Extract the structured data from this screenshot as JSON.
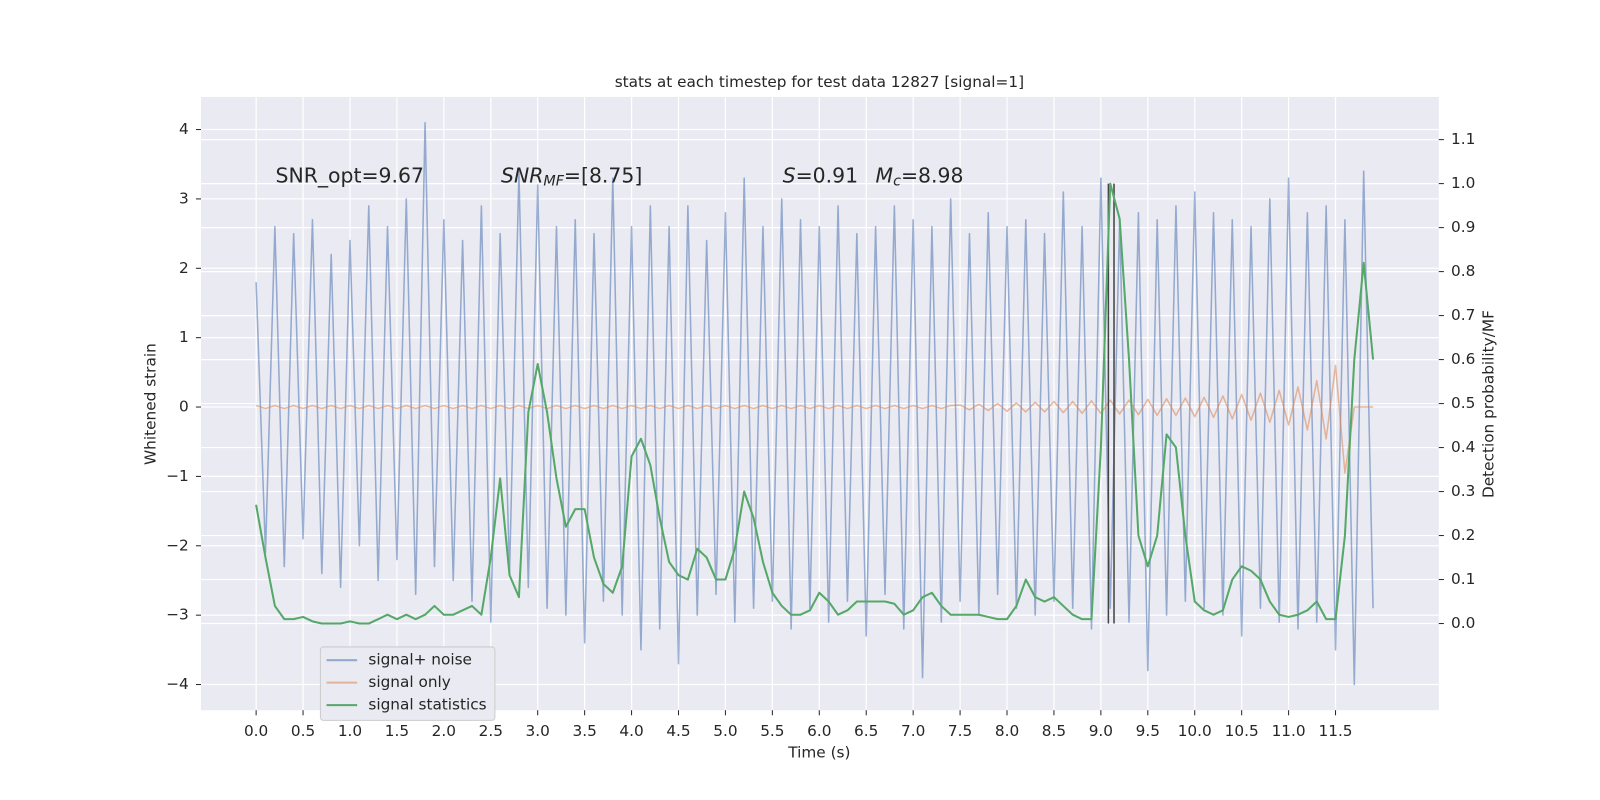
{
  "chart_data": {
    "type": "line",
    "title": "stats at each timestep for test data 12827 [signal=1]",
    "x_label": "Time (s)",
    "y_label": "Whitened strain",
    "y2_label": "Detection probability/MF",
    "grid": true,
    "legend": "lower left",
    "annotations": [
      {
        "parts": [
          {
            "text": "SNR_opt=9.67"
          }
        ]
      },
      {
        "parts": [
          {
            "text": "SNR",
            "italic": true
          },
          {
            "text": "MF",
            "italic": true,
            "sub": true
          },
          {
            "text": "=[8.75]"
          }
        ]
      },
      {
        "parts": [
          {
            "text": "S",
            "italic": true
          },
          {
            "text": "=0.91"
          }
        ]
      },
      {
        "parts": [
          {
            "text": "M",
            "italic": true
          },
          {
            "text": "c",
            "italic": true,
            "sub": true
          },
          {
            "text": "=8.98"
          }
        ]
      }
    ],
    "xlim": [
      -0.587,
      12.6
    ],
    "xticks": [
      {
        "value": 0,
        "label": "0.0"
      },
      0.5,
      {
        "value": 1,
        "label": "1.0"
      },
      1.5,
      {
        "value": 2,
        "label": "2.0"
      },
      2.5,
      {
        "value": 3,
        "label": "3.0"
      },
      3.5,
      {
        "value": 4,
        "label": "4.0"
      },
      4.5,
      {
        "value": 5,
        "label": "5.0"
      },
      5.5,
      {
        "value": 6,
        "label": "6.0"
      },
      6.5,
      {
        "value": 7,
        "label": "7.0"
      },
      7.5,
      {
        "value": 8,
        "label": "8.0"
      },
      8.5,
      {
        "value": 9,
        "label": "9.0"
      },
      9.5,
      {
        "value": 10,
        "label": "10.0"
      },
      10.5,
      {
        "value": 11,
        "label": "11.0"
      },
      11.5
    ],
    "ylim": [
      -4.37,
      4.47
    ],
    "yticks": [
      {
        "value": -4,
        "label": "−4"
      },
      {
        "value": -3,
        "label": "−3"
      },
      {
        "value": -2,
        "label": "−2"
      },
      {
        "value": -1,
        "label": "−1"
      },
      0,
      1,
      2,
      3,
      4
    ],
    "y2lim": [
      -0.197,
      1.197
    ],
    "y2ticks": [
      {
        "value": 0,
        "label": "0.0"
      },
      0.1,
      0.2,
      0.3,
      0.4,
      0.5,
      0.6,
      0.7,
      0.8,
      0.9,
      {
        "value": 1,
        "label": "1.0"
      },
      1.1
    ],
    "x": [
      0,
      0.1,
      0.2,
      0.3,
      0.4,
      0.5,
      0.6,
      0.7,
      0.8,
      0.9,
      1,
      1.1,
      1.2,
      1.3,
      1.4,
      1.5,
      1.6,
      1.7,
      1.8,
      1.9,
      2,
      2.1,
      2.2,
      2.3,
      2.4,
      2.5,
      2.6,
      2.7,
      2.8,
      2.9,
      3,
      3.1,
      3.2,
      3.3,
      3.4,
      3.5,
      3.6,
      3.7,
      3.8,
      3.9,
      4,
      4.1,
      4.2,
      4.3,
      4.4,
      4.5,
      4.6,
      4.7,
      4.8,
      4.9,
      5,
      5.1,
      5.2,
      5.3,
      5.4,
      5.5,
      5.6,
      5.7,
      5.8,
      5.9,
      6,
      6.1,
      6.2,
      6.3,
      6.4,
      6.5,
      6.6,
      6.7,
      6.8,
      6.9,
      7,
      7.1,
      7.2,
      7.3,
      7.4,
      7.5,
      7.6,
      7.7,
      7.8,
      7.9,
      8,
      8.1,
      8.2,
      8.3,
      8.4,
      8.5,
      8.6,
      8.7,
      8.8,
      8.9,
      9,
      9.1,
      9.2,
      9.3,
      9.4,
      9.5,
      9.6,
      9.7,
      9.8,
      9.9,
      10,
      10.1,
      10.2,
      10.3,
      10.4,
      10.5,
      10.6,
      10.7,
      10.8,
      10.9,
      11,
      11.1,
      11.2,
      11.3,
      11.4,
      11.5,
      11.6,
      11.7,
      11.8,
      11.9
    ],
    "series": [
      {
        "name": "signal+ noise",
        "color": "#4c72b0",
        "values": [
          1.8,
          -2.1,
          2.6,
          -2.3,
          2.5,
          -1.9,
          2.7,
          -2.4,
          2.2,
          -2.6,
          2.4,
          -2.0,
          2.9,
          -2.5,
          2.6,
          -2.2,
          3.0,
          -2.7,
          4.1,
          -2.3,
          2.7,
          -2.5,
          2.4,
          -2.8,
          2.9,
          -3.1,
          2.5,
          -2.4,
          3.4,
          -2.6,
          3.2,
          -2.9,
          2.6,
          -3.0,
          2.7,
          -3.4,
          2.5,
          -2.8,
          3.3,
          -3.0,
          2.6,
          -3.5,
          2.9,
          -3.2,
          2.6,
          -3.7,
          2.9,
          -3.0,
          2.4,
          -2.7,
          2.8,
          -3.1,
          3.3,
          -2.9,
          2.6,
          -2.8,
          3.0,
          -3.2,
          2.7,
          -2.9,
          2.6,
          -3.1,
          2.9,
          -2.8,
          2.5,
          -3.3,
          2.6,
          -2.7,
          2.9,
          -3.2,
          2.7,
          -3.9,
          2.6,
          -3.1,
          3.0,
          -2.8,
          2.5,
          -3.0,
          2.8,
          -2.7,
          2.6,
          -2.9,
          2.7,
          -3.0,
          2.5,
          -2.8,
          3.1,
          -2.9,
          2.6,
          -3.2,
          3.3,
          -2.9,
          2.7,
          -3.1,
          2.8,
          -3.8,
          2.7,
          -3.0,
          2.9,
          -2.8,
          3.1,
          -2.9,
          2.8,
          -3.0,
          2.7,
          -3.3,
          2.6,
          -2.9,
          3.0,
          -3.1,
          3.3,
          -3.2,
          2.8,
          -3.1,
          2.9,
          -3.5,
          2.7,
          -4.0,
          3.4,
          -2.9
        ]
      },
      {
        "name": "signal only",
        "color": "#dd8452",
        "values": [
          0.02,
          -0.02,
          0.02,
          -0.02,
          0.02,
          -0.02,
          0.02,
          -0.02,
          0.02,
          -0.02,
          0.02,
          -0.02,
          0.02,
          -0.02,
          0.02,
          -0.02,
          0.02,
          -0.02,
          0.02,
          -0.02,
          0.02,
          -0.02,
          0.02,
          -0.02,
          0.02,
          -0.02,
          0.02,
          -0.02,
          0.02,
          -0.02,
          0.02,
          -0.02,
          0.02,
          -0.02,
          0.02,
          -0.02,
          0.02,
          -0.02,
          0.02,
          -0.02,
          0.02,
          -0.02,
          0.02,
          -0.02,
          0.02,
          -0.02,
          0.02,
          -0.02,
          0.02,
          -0.02,
          0.02,
          -0.02,
          0.02,
          -0.02,
          0.02,
          -0.02,
          0.02,
          -0.02,
          0.02,
          -0.02,
          0.02,
          -0.02,
          0.02,
          -0.02,
          0.02,
          -0.02,
          0.02,
          -0.02,
          0.02,
          -0.02,
          0.02,
          -0.02,
          0.02,
          -0.02,
          0.02,
          0.03,
          -0.04,
          0.04,
          -0.05,
          0.05,
          -0.06,
          0.06,
          -0.07,
          0.07,
          -0.07,
          0.08,
          -0.08,
          0.08,
          -0.09,
          0.09,
          -0.09,
          0.1,
          -0.1,
          0.1,
          -0.11,
          0.11,
          -0.12,
          0.12,
          -0.12,
          0.13,
          -0.14,
          0.14,
          -0.15,
          0.16,
          -0.17,
          0.18,
          -0.19,
          0.2,
          -0.22,
          0.24,
          -0.26,
          0.29,
          -0.33,
          0.38,
          -0.46,
          0.6,
          -0.95,
          0,
          0,
          0
        ]
      },
      {
        "name": "signal statistics",
        "color": "#55a868",
        "axis": "y2",
        "values": [
          0.27,
          0.15,
          0.04,
          0.01,
          0.01,
          0.015,
          0.005,
          0.0,
          0.0,
          0.0,
          0.005,
          0.0,
          0.0,
          0.01,
          0.02,
          0.01,
          0.02,
          0.01,
          0.02,
          0.04,
          0.02,
          0.02,
          0.03,
          0.04,
          0.02,
          0.15,
          0.33,
          0.11,
          0.06,
          0.48,
          0.59,
          0.48,
          0.33,
          0.22,
          0.26,
          0.26,
          0.15,
          0.09,
          0.07,
          0.13,
          0.38,
          0.42,
          0.36,
          0.24,
          0.14,
          0.11,
          0.1,
          0.17,
          0.15,
          0.1,
          0.1,
          0.17,
          0.3,
          0.24,
          0.14,
          0.07,
          0.04,
          0.02,
          0.02,
          0.03,
          0.07,
          0.05,
          0.02,
          0.03,
          0.05,
          0.05,
          0.05,
          0.05,
          0.045,
          0.02,
          0.03,
          0.06,
          0.07,
          0.04,
          0.02,
          0.02,
          0.02,
          0.02,
          0.015,
          0.01,
          0.01,
          0.04,
          0.1,
          0.06,
          0.05,
          0.06,
          0.04,
          0.02,
          0.01,
          0.01,
          0.4,
          1.0,
          0.92,
          0.6,
          0.2,
          0.13,
          0.2,
          0.43,
          0.4,
          0.2,
          0.05,
          0.03,
          0.02,
          0.03,
          0.1,
          0.13,
          0.12,
          0.1,
          0.05,
          0.02,
          0.015,
          0.02,
          0.03,
          0.05,
          0.01,
          0.01,
          0.2,
          0.6,
          0.82,
          0.6
        ]
      }
    ],
    "vlines": {
      "x": [
        9.08,
        9.14
      ],
      "y2_range": [
        0,
        1.0
      ],
      "color": "#444444"
    }
  }
}
